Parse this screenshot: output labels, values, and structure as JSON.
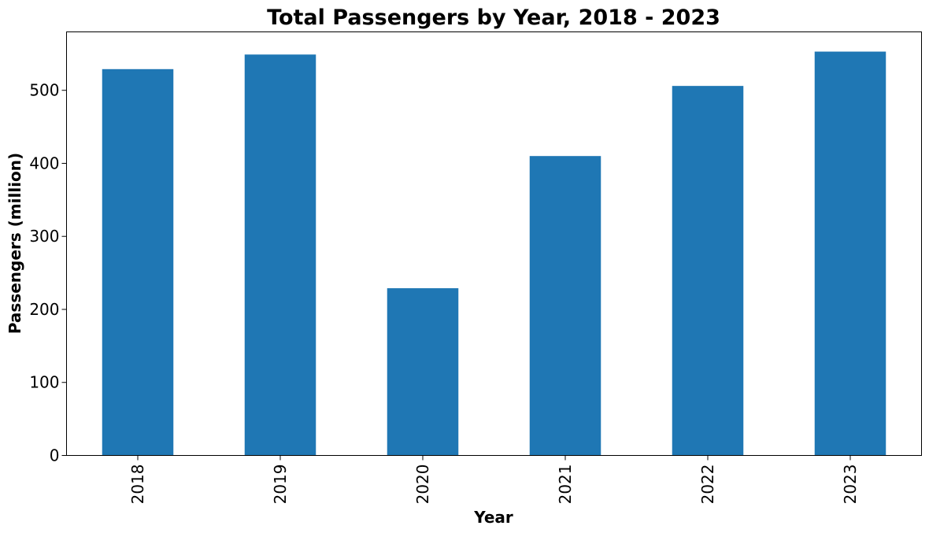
{
  "chart_data": {
    "type": "bar",
    "title": "Total Passengers by Year, 2018 - 2023",
    "xlabel": "Year",
    "ylabel": "Passengers (million)",
    "categories": [
      "2018",
      "2019",
      "2020",
      "2021",
      "2022",
      "2023"
    ],
    "values": [
      529,
      549,
      229,
      410,
      506,
      553
    ],
    "ylim": [
      0,
      580
    ],
    "yticks": [
      0,
      100,
      200,
      300,
      400,
      500
    ],
    "grid": false,
    "legend": "none",
    "bar_color": "#1f77b4"
  }
}
